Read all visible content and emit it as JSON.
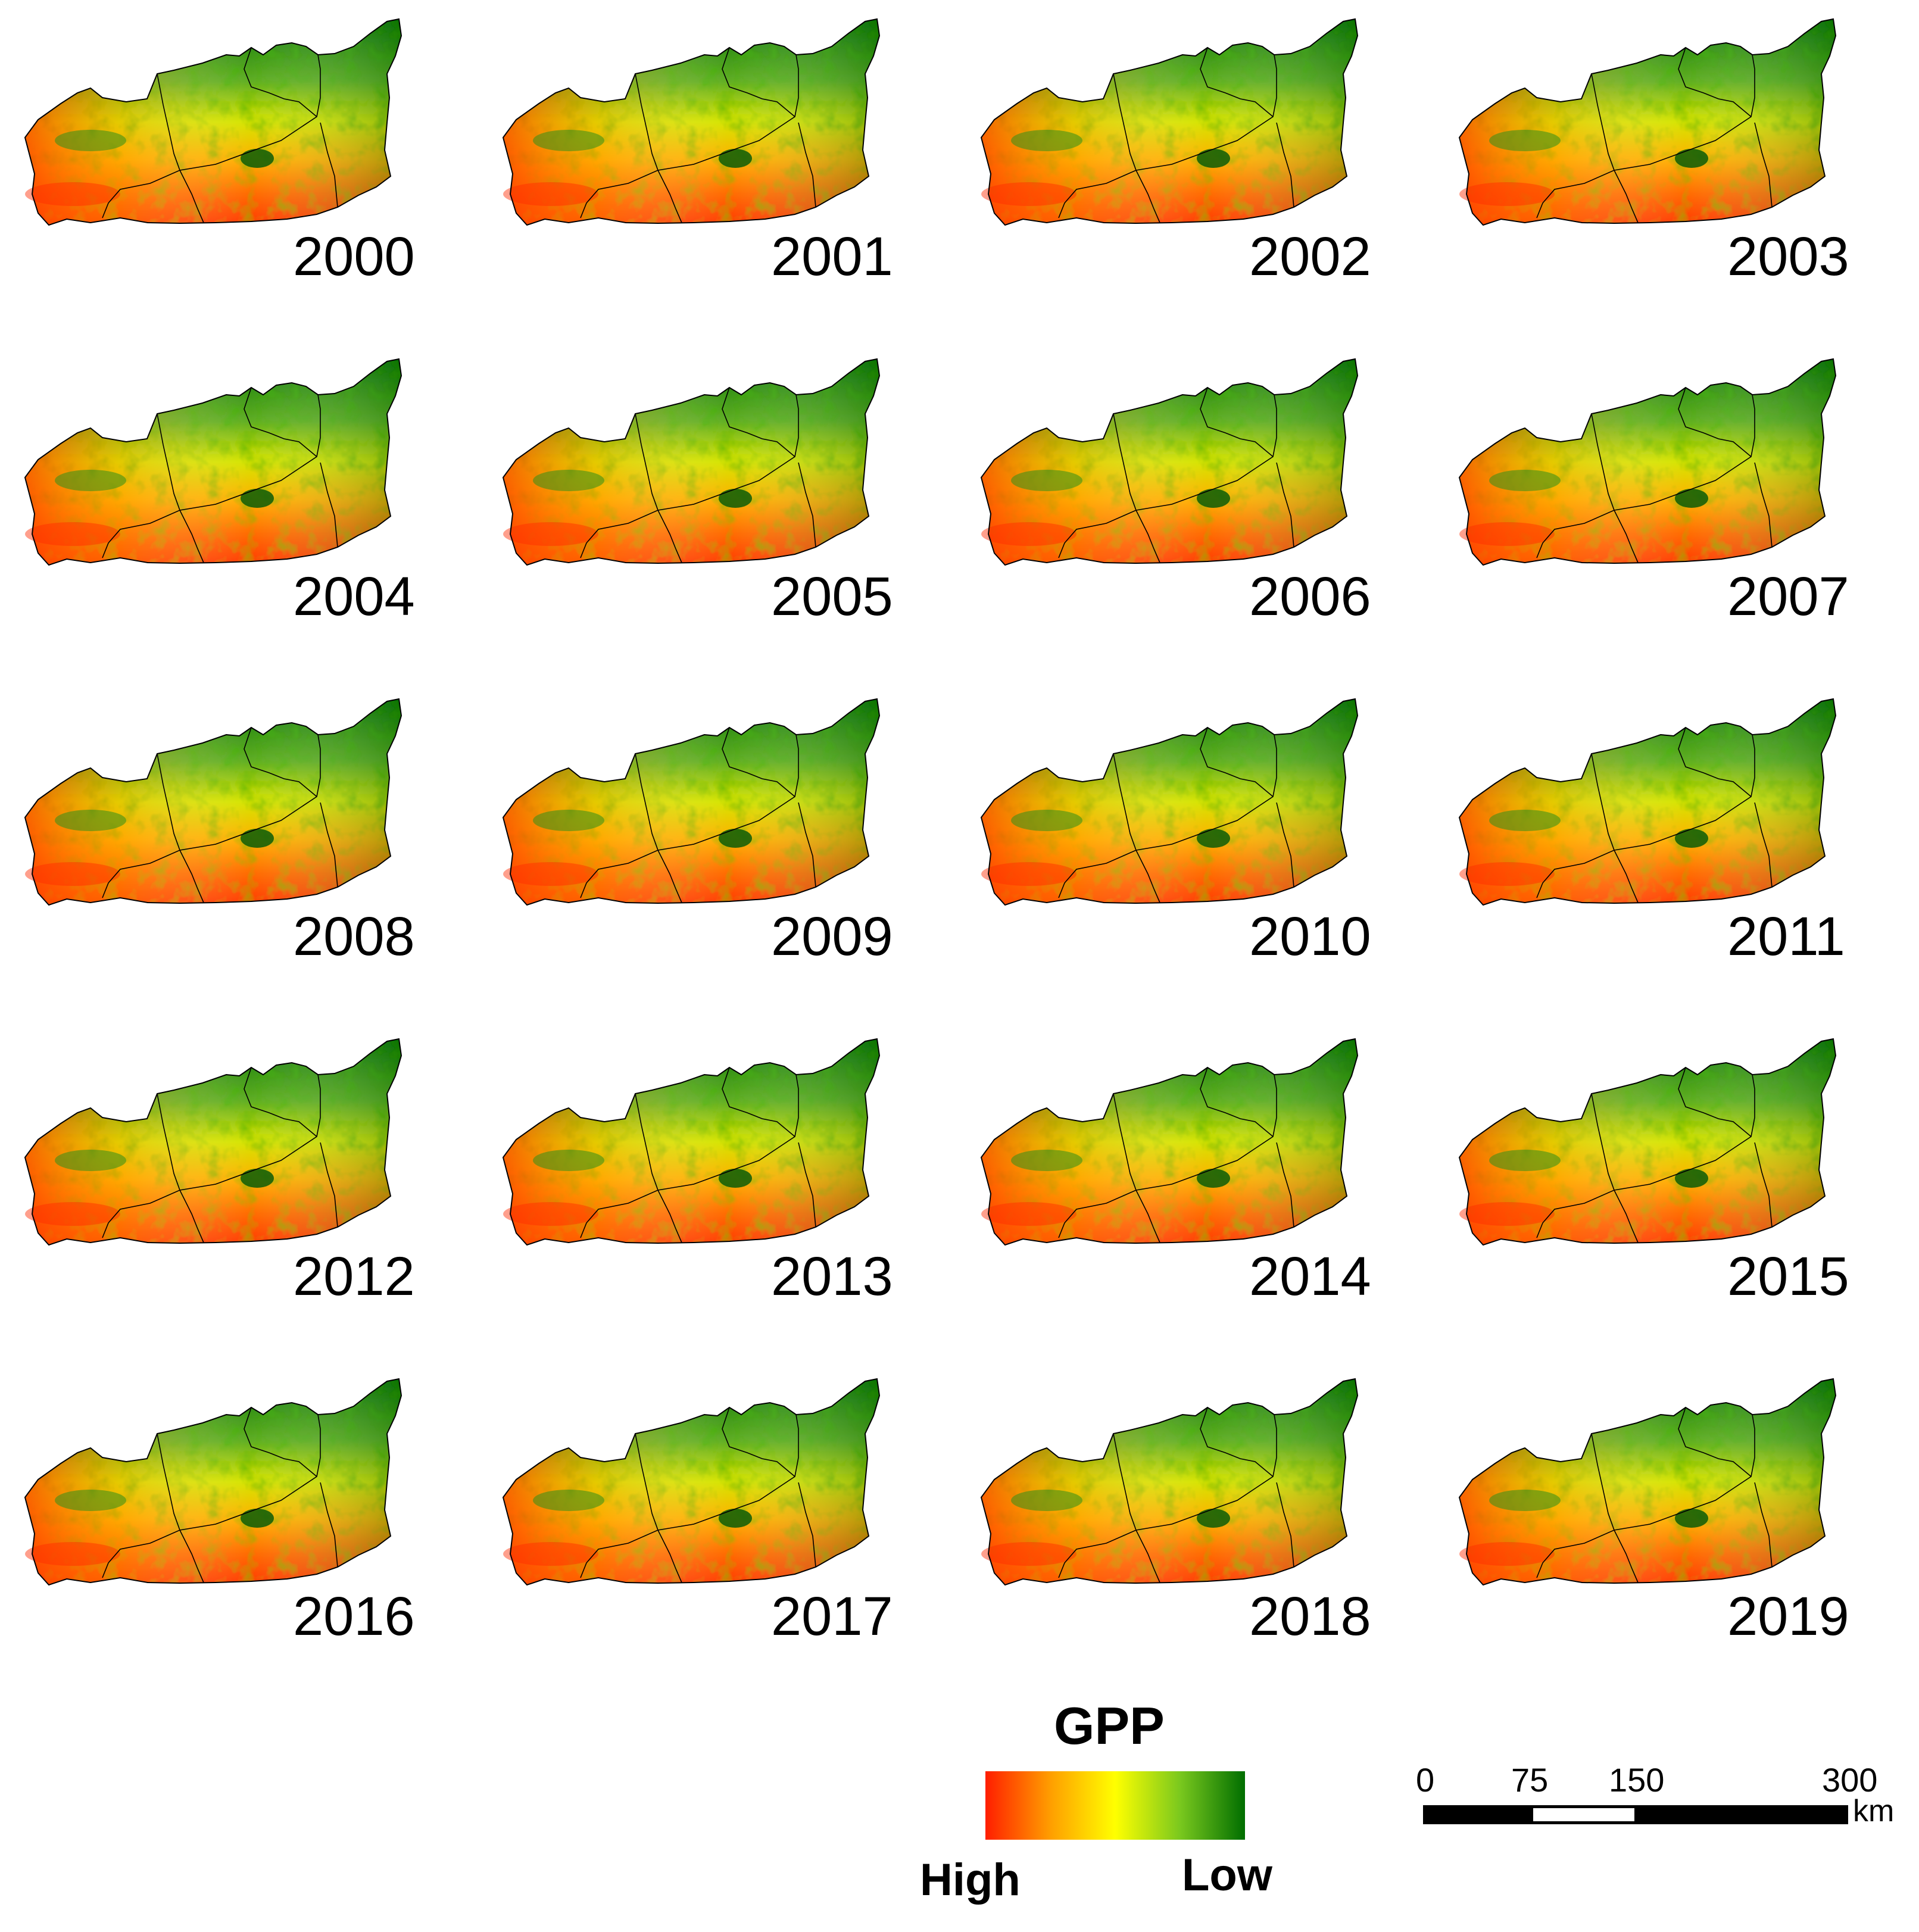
{
  "figure": {
    "description_variable": "GPP",
    "panels": [
      {
        "year": "2000"
      },
      {
        "year": "2001"
      },
      {
        "year": "2002"
      },
      {
        "year": "2003"
      },
      {
        "year": "2004"
      },
      {
        "year": "2005"
      },
      {
        "year": "2006"
      },
      {
        "year": "2007"
      },
      {
        "year": "2008"
      },
      {
        "year": "2009"
      },
      {
        "year": "2010"
      },
      {
        "year": "2011"
      },
      {
        "year": "2012"
      },
      {
        "year": "2013"
      },
      {
        "year": "2014"
      },
      {
        "year": "2015"
      },
      {
        "year": "2016"
      },
      {
        "year": "2017"
      },
      {
        "year": "2018"
      },
      {
        "year": "2019"
      }
    ]
  },
  "legend": {
    "title": "GPP",
    "high_label": "High",
    "low_label": "Low",
    "colors": {
      "high": "#ff1e00",
      "mid_orange": "#ff9e00",
      "mid_yellow": "#ffff00",
      "mid_green": "#7ac81e",
      "low": "#006e00"
    }
  },
  "scale_bar": {
    "ticks": [
      "0",
      "75",
      "150",
      "300"
    ],
    "unit": "km"
  }
}
